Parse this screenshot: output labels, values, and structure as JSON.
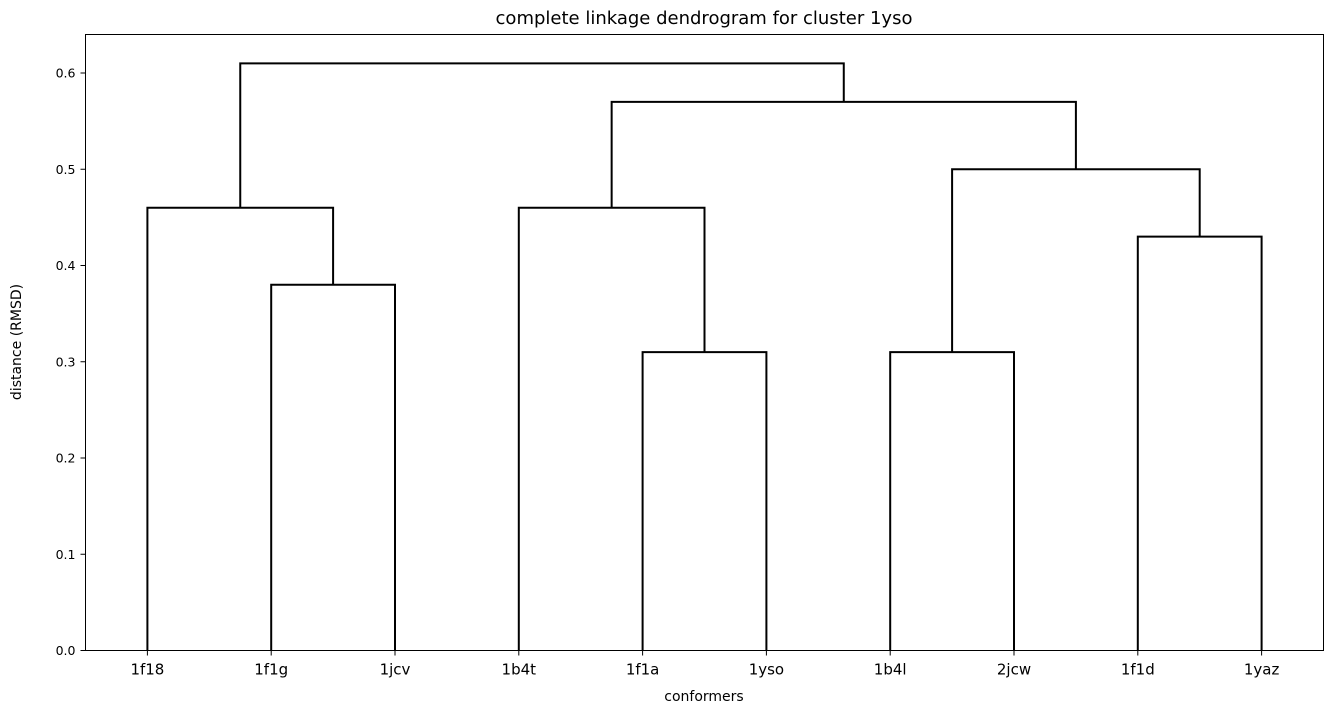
{
  "chart_data": {
    "type": "dendrogram",
    "title": "complete linkage dendrogram for cluster 1yso",
    "xlabel": "conformers",
    "ylabel": "distance (RMSD)",
    "ylim": [
      0,
      0.64
    ],
    "yticks": [
      "0.0",
      "0.1",
      "0.2",
      "0.3",
      "0.4",
      "0.5",
      "0.6"
    ],
    "ytick_values": [
      0,
      0.1,
      0.2,
      0.3,
      0.4,
      0.5,
      0.6
    ],
    "leaves": [
      "1f18",
      "1f1g",
      "1jcv",
      "1b4t",
      "1f1a",
      "1yso",
      "1b4l",
      "2jcw",
      "1f1d",
      "1yaz"
    ],
    "link_color": "#000000",
    "grid": false,
    "links": [
      {
        "id": "n1",
        "left": "1f1g",
        "right": "1jcv",
        "distance": 0.38
      },
      {
        "id": "n2",
        "left": "1f18",
        "right": "n1",
        "distance": 0.46
      },
      {
        "id": "n3",
        "left": "1f1a",
        "right": "1yso",
        "distance": 0.31
      },
      {
        "id": "n4",
        "left": "1b4t",
        "right": "n3",
        "distance": 0.46
      },
      {
        "id": "n5",
        "left": "1b4l",
        "right": "2jcw",
        "distance": 0.31
      },
      {
        "id": "n6",
        "left": "1f1d",
        "right": "1yaz",
        "distance": 0.43
      },
      {
        "id": "n7",
        "left": "n5",
        "right": "n6",
        "distance": 0.5
      },
      {
        "id": "n8",
        "left": "n4",
        "right": "n7",
        "distance": 0.57
      },
      {
        "id": "n9",
        "left": "n2",
        "right": "n8",
        "distance": 0.61
      }
    ]
  }
}
